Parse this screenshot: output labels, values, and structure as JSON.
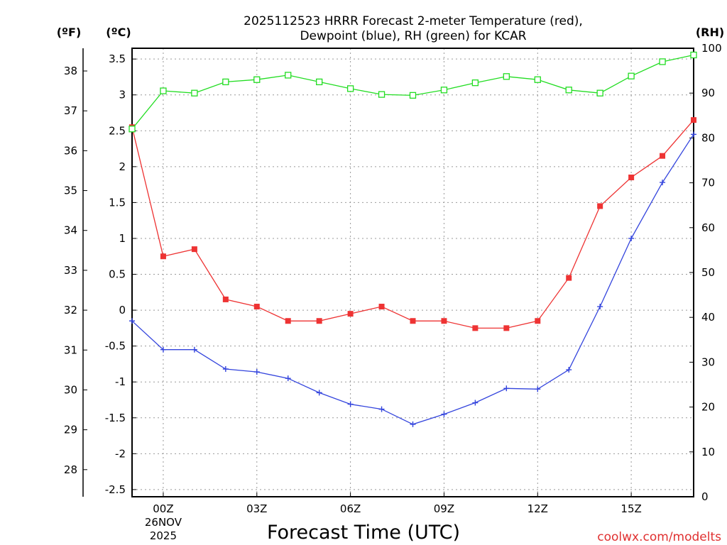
{
  "chart_data": {
    "type": "line",
    "title_line1": "2025112523 HRRR Forecast 2-meter Temperature (red),",
    "title_line2": "Dewpoint (blue), RH (green) for KCAR",
    "xlabel": "Forecast Time (UTC)",
    "watermark": "coolwx.com/modelts",
    "units": {
      "fahrenheit": "(ºF)",
      "celsius": "(ºC)",
      "rh": "(RH)"
    },
    "x_hours": [
      -1,
      0,
      1,
      2,
      3,
      4,
      5,
      6,
      7,
      8,
      9,
      10,
      11,
      12,
      13,
      14,
      15,
      16,
      17
    ],
    "xlim": [
      -1,
      17
    ],
    "x_ticks": [
      {
        "hour": 0,
        "label": "00Z",
        "sub1": "26NOV",
        "sub2": "2025"
      },
      {
        "hour": 3,
        "label": "03Z",
        "sub1": "",
        "sub2": ""
      },
      {
        "hour": 6,
        "label": "06Z",
        "sub1": "",
        "sub2": ""
      },
      {
        "hour": 9,
        "label": "09Z",
        "sub1": "",
        "sub2": ""
      },
      {
        "hour": 12,
        "label": "12Z",
        "sub1": "",
        "sub2": ""
      },
      {
        "hour": 15,
        "label": "15Z",
        "sub1": "",
        "sub2": ""
      }
    ],
    "celsius_axis": {
      "ylim": [
        -2.6,
        3.65
      ],
      "ticks": [
        "3.5",
        "3",
        "2.5",
        "2",
        "1.5",
        "1",
        "0.5",
        "0",
        "-0.5",
        "-1",
        "-1.5",
        "-2",
        "-2.5"
      ]
    },
    "fahrenheit_axis": {
      "ticks": [
        "38",
        "37",
        "36",
        "35",
        "34",
        "33",
        "32",
        "31",
        "30",
        "29",
        "28"
      ]
    },
    "rh_axis": {
      "ylim": [
        0,
        100
      ],
      "ticks": [
        "100",
        "90",
        "80",
        "70",
        "60",
        "50",
        "40",
        "30",
        "20",
        "10",
        "0"
      ]
    },
    "series": [
      {
        "name": "Temperature",
        "axis": "celsius",
        "color": "#ee3333",
        "marker": "filled-square",
        "values": [
          2.55,
          0.75,
          0.85,
          0.15,
          0.05,
          -0.15,
          -0.15,
          -0.05,
          0.05,
          -0.15,
          -0.15,
          -0.25,
          -0.25,
          -0.15,
          0.45,
          1.45,
          1.85,
          2.15,
          2.65
        ]
      },
      {
        "name": "Dewpoint",
        "axis": "celsius",
        "color": "#3344dd",
        "marker": "plus",
        "values": [
          -0.15,
          -0.55,
          -0.55,
          -0.82,
          -0.86,
          -0.95,
          -1.15,
          -1.31,
          -1.38,
          -1.59,
          -1.45,
          -1.29,
          -1.09,
          -1.1,
          -0.83,
          0.05,
          1.0,
          1.78,
          2.45
        ]
      },
      {
        "name": "RH",
        "axis": "rh",
        "color": "#22dd22",
        "marker": "open-square",
        "values": [
          82,
          90.5,
          90,
          92.5,
          93,
          94,
          92.5,
          91,
          89.7,
          89.5,
          90.7,
          92.3,
          93.7,
          93,
          90.7,
          90,
          93.8,
          97,
          98.5
        ]
      }
    ]
  }
}
